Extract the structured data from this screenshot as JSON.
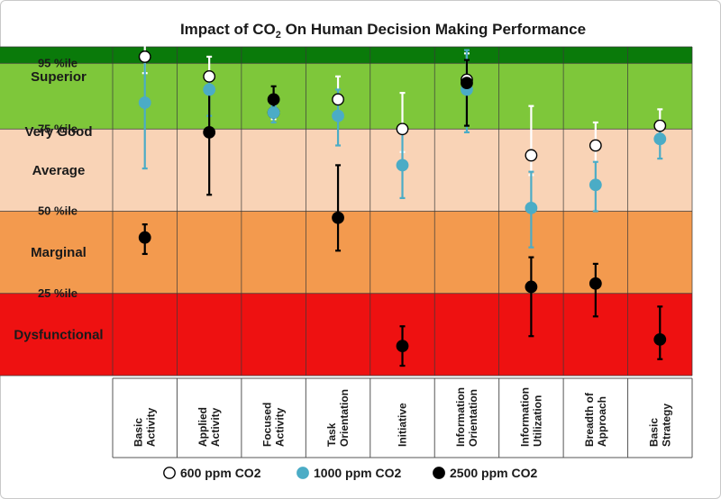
{
  "chart_data": {
    "type": "scatter",
    "title": "Impact of CO",
    "title_sub": "2",
    "title_rest": " On Human Decision Making Performance",
    "ylim": [
      0,
      100
    ],
    "bands": [
      {
        "label": "Superior",
        "from": 95,
        "to": 100,
        "color": "#0a7a0a"
      },
      {
        "label": "Very Good",
        "from": 75,
        "to": 95,
        "color": "#7ec73a"
      },
      {
        "label": "Average",
        "from": 50,
        "to": 75,
        "color": "#f9d3b6"
      },
      {
        "label": "Marginal",
        "from": 25,
        "to": 50,
        "color": "#f39a4e"
      },
      {
        "label": "Dysfunctional",
        "from": 0,
        "to": 25,
        "color": "#ee1111"
      }
    ],
    "percentile_labels": [
      {
        "label": "95 %ile",
        "value": 95
      },
      {
        "label": "75 %ile",
        "value": 75
      },
      {
        "label": "50 %ile",
        "value": 50
      },
      {
        "label": "25 %ile",
        "value": 25
      }
    ],
    "categories": [
      [
        "Basic",
        "Activity"
      ],
      [
        "Applied",
        "Activity"
      ],
      [
        "Focused",
        "Activity"
      ],
      [
        "Task",
        "Orientation"
      ],
      [
        "Initiative"
      ],
      [
        "Information",
        "Orientation"
      ],
      [
        "Information",
        "Utilization"
      ],
      [
        "Breadth of",
        "Approach"
      ],
      [
        "Basic",
        "Strategy"
      ]
    ],
    "series": [
      {
        "name": "600 ppm CO2",
        "fill": "#ffffff",
        "stroke": "#000000",
        "errColor": "#ffffff",
        "points": [
          {
            "y": 97,
            "lo": 92,
            "hi": 102
          },
          {
            "y": 91,
            "lo": 86,
            "hi": 97
          },
          {
            "y": 80,
            "lo": 78,
            "hi": 82
          },
          {
            "y": 84,
            "lo": 79,
            "hi": 91
          },
          {
            "y": 75,
            "lo": 68,
            "hi": 86
          },
          {
            "y": 90,
            "lo": 86,
            "hi": 98
          },
          {
            "y": 67,
            "lo": 61,
            "hi": 82
          },
          {
            "y": 70,
            "lo": 65,
            "hi": 77
          },
          {
            "y": 76,
            "lo": 73,
            "hi": 81
          }
        ]
      },
      {
        "name": "1000 ppm CO2",
        "fill": "#4bacc6",
        "stroke": "#4bacc6",
        "errColor": "#4bacc6",
        "points": [
          {
            "y": 83,
            "lo": 63,
            "hi": 96
          },
          {
            "y": 87,
            "lo": 79,
            "hi": 92
          },
          {
            "y": 80,
            "lo": 77,
            "hi": 82
          },
          {
            "y": 79,
            "lo": 70,
            "hi": 87
          },
          {
            "y": 64,
            "lo": 54,
            "hi": 76
          },
          {
            "y": 87,
            "lo": 74,
            "hi": 99
          },
          {
            "y": 51,
            "lo": 39,
            "hi": 62
          },
          {
            "y": 58,
            "lo": 50,
            "hi": 65
          },
          {
            "y": 72,
            "lo": 66,
            "hi": 76
          }
        ]
      },
      {
        "name": "2500 ppm CO2",
        "fill": "#000000",
        "stroke": "#000000",
        "errColor": "#000000",
        "points": [
          {
            "y": 42,
            "lo": 37,
            "hi": 46
          },
          {
            "y": 74,
            "lo": 55,
            "hi": 87
          },
          {
            "y": 84,
            "lo": 80,
            "hi": 88
          },
          {
            "y": 48,
            "lo": 38,
            "hi": 64
          },
          {
            "y": 9,
            "lo": 3,
            "hi": 15
          },
          {
            "y": 89,
            "lo": 76,
            "hi": 96
          },
          {
            "y": 27,
            "lo": 12,
            "hi": 36
          },
          {
            "y": 28,
            "lo": 18,
            "hi": 34
          },
          {
            "y": 11,
            "lo": 5,
            "hi": 21
          }
        ]
      }
    ]
  }
}
